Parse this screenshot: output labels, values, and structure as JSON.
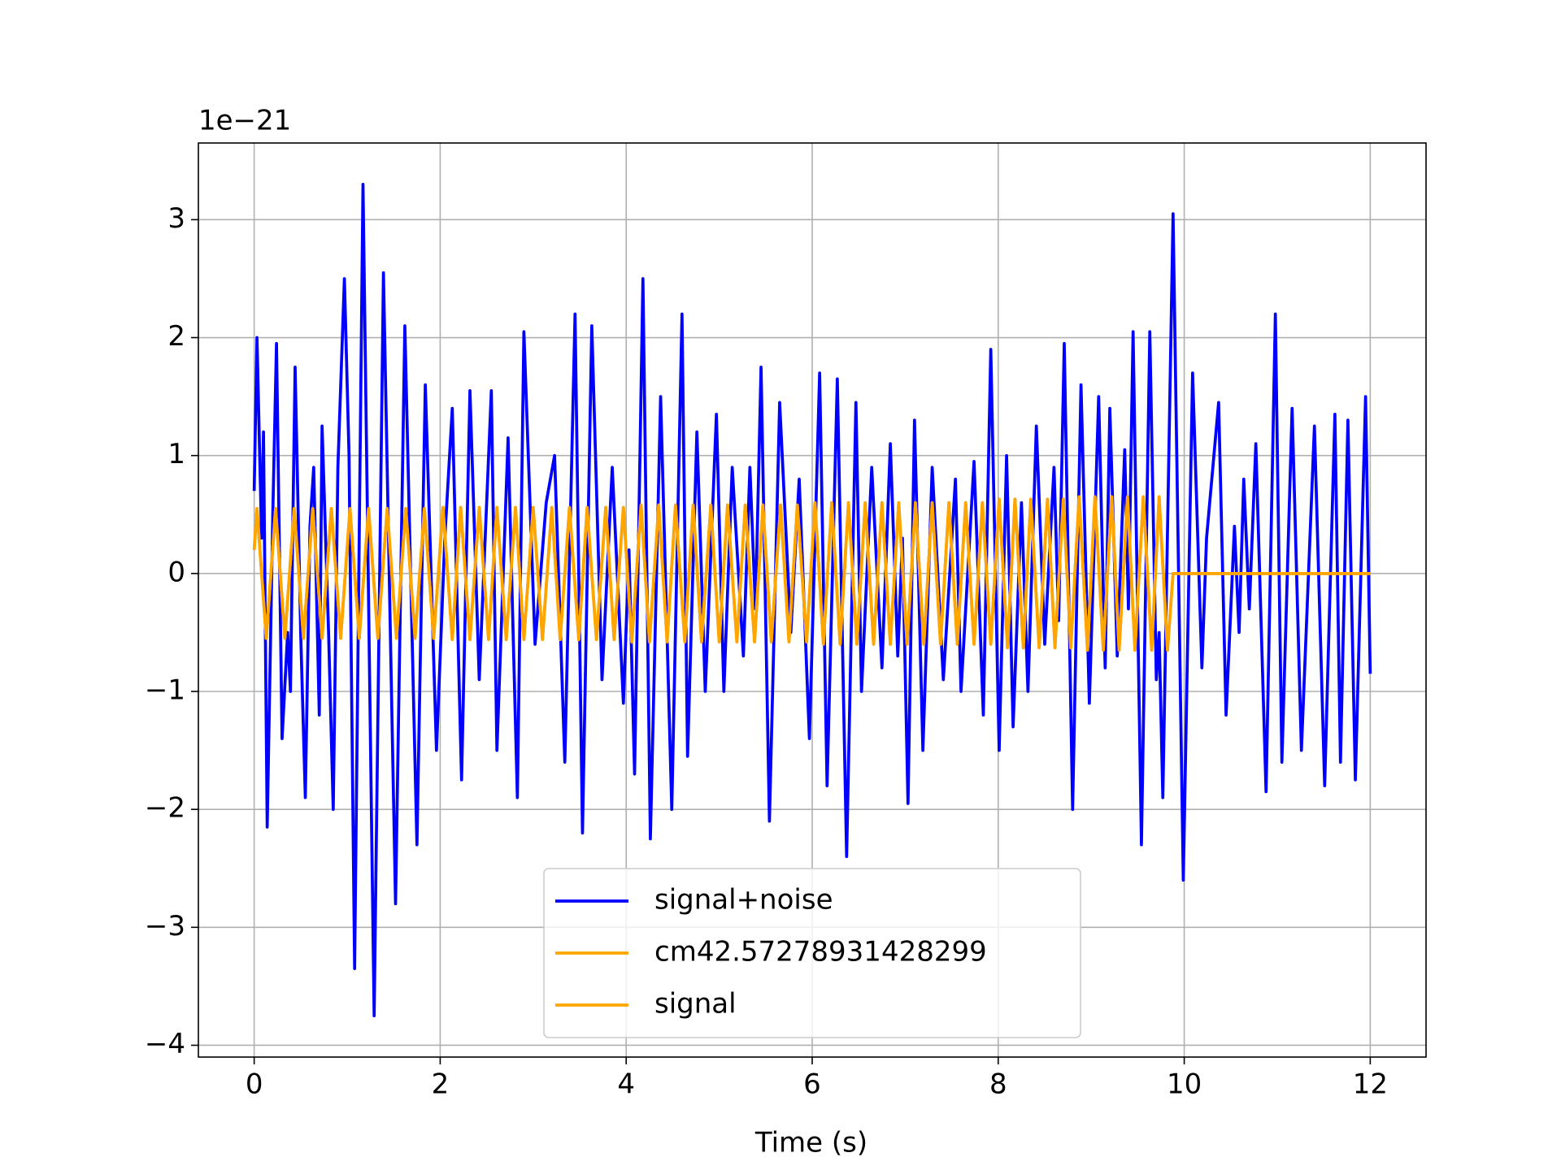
{
  "chart_data": {
    "type": "line",
    "offset_label": "1e−21",
    "xlabel": "Time (s)",
    "xlim": [
      -0.6,
      12.6
    ],
    "ylim": [
      -4.1,
      3.65
    ],
    "xticks": [
      0,
      2,
      4,
      6,
      8,
      10,
      12
    ],
    "yticks": [
      {
        "value": -4,
        "label": "−4"
      },
      {
        "value": -3,
        "label": "−3"
      },
      {
        "value": -2,
        "label": "−2"
      },
      {
        "value": -1,
        "label": "−1"
      },
      0,
      1,
      2,
      3
    ],
    "grid": true,
    "legend": "lower center",
    "series": [
      {
        "name": "signal+noise",
        "color": "#0000ff",
        "x": [
          0,
          0.03,
          0.08,
          0.1,
          0.14,
          0.2,
          0.24,
          0.3,
          0.36,
          0.39,
          0.44,
          0.5,
          0.55,
          0.6,
          0.64,
          0.7,
          0.73,
          0.8,
          0.85,
          0.9,
          0.97,
          1.02,
          1.08,
          1.17,
          1.29,
          1.39,
          1.52,
          1.62,
          1.75,
          1.84,
          1.96,
          2.05,
          2.13,
          2.23,
          2.32,
          2.42,
          2.55,
          2.61,
          2.73,
          2.83,
          2.9,
          3.02,
          3.14,
          3.23,
          3.34,
          3.45,
          3.53,
          3.63,
          3.74,
          3.85,
          3.97,
          4.03,
          4.09,
          4.18,
          4.26,
          4.37,
          4.49,
          4.6,
          4.66,
          4.76,
          4.85,
          4.97,
          5.05,
          5.14,
          5.26,
          5.33,
          5.39,
          5.45,
          5.54,
          5.65,
          5.77,
          5.86,
          5.97,
          6.08,
          6.16,
          6.27,
          6.37,
          6.47,
          6.53,
          6.64,
          6.75,
          6.84,
          6.92,
          6.97,
          7.03,
          7.1,
          7.19,
          7.29,
          7.41,
          7.54,
          7.6,
          7.74,
          7.84,
          7.92,
          8.01,
          8.09,
          8.16,
          8.25,
          8.32,
          8.41,
          8.5,
          8.6,
          8.65,
          8.71,
          8.8,
          8.89,
          8.98,
          9.08,
          9.15,
          9.2,
          9.28,
          9.36,
          9.4,
          9.45,
          9.54,
          9.63,
          9.7,
          9.73,
          9.77,
          9.88,
          9.99,
          10.09,
          10.19,
          10.24,
          10.37,
          10.45,
          10.54,
          10.59,
          10.64,
          10.7,
          10.77,
          10.88,
          10.98,
          11.05,
          11.16,
          11.26,
          11.4,
          11.51,
          11.62,
          11.68,
          11.76,
          11.84,
          11.95,
          12.0
        ],
        "values": [
          0.7,
          2.0,
          0.3,
          1.2,
          -2.15,
          0.5,
          1.95,
          -1.4,
          -0.5,
          -1.0,
          1.75,
          -0.5,
          -1.9,
          0.4,
          0.9,
          -1.2,
          1.25,
          -0.5,
          -2.0,
          0.9,
          2.5,
          1.0,
          -3.35,
          3.3,
          -3.75,
          2.55,
          -2.8,
          2.1,
          -2.3,
          1.6,
          -1.5,
          0.3,
          1.4,
          -1.75,
          1.55,
          -0.9,
          1.55,
          -1.5,
          1.15,
          -1.9,
          2.05,
          -0.6,
          0.6,
          1.0,
          -1.6,
          2.2,
          -2.2,
          2.1,
          -0.9,
          0.9,
          -1.1,
          0.2,
          -1.7,
          2.5,
          -2.25,
          1.5,
          -2.0,
          2.2,
          -1.55,
          1.2,
          -1.0,
          1.35,
          -1.0,
          0.9,
          -0.7,
          0.9,
          -0.3,
          1.75,
          -2.1,
          1.45,
          -0.5,
          0.8,
          -1.4,
          1.7,
          -1.8,
          1.65,
          -2.4,
          1.45,
          -1.0,
          0.9,
          -0.8,
          1.1,
          -0.7,
          0.3,
          -1.95,
          1.3,
          -1.5,
          0.9,
          -0.9,
          0.8,
          -1.0,
          0.95,
          -1.2,
          1.9,
          -1.5,
          1.0,
          -1.3,
          0.6,
          -1.0,
          1.25,
          -0.6,
          0.9,
          -0.4,
          1.95,
          -2.0,
          1.6,
          -1.1,
          1.5,
          -0.8,
          1.4,
          -0.7,
          1.05,
          -0.3,
          2.05,
          -2.3,
          2.05,
          -0.9,
          -0.5,
          -1.9,
          3.05,
          -2.6,
          1.7,
          -0.8,
          0.3,
          1.45,
          -1.2,
          0.4,
          -0.5,
          0.8,
          -0.3,
          1.1,
          -1.85,
          2.2,
          -1.6,
          1.4,
          -1.5,
          1.25,
          -1.8,
          1.35,
          -1.6,
          1.3,
          -1.75,
          1.5,
          -0.85
        ]
      },
      {
        "name": "cm42.57278931428299",
        "color": "#ffa500",
        "x": [
          0,
          0.03,
          0.13,
          0.23,
          0.33,
          0.43,
          0.53,
          0.63,
          0.73,
          0.83,
          0.93,
          1.03,
          1.13,
          1.23,
          1.33,
          1.43,
          1.53,
          1.63,
          1.73,
          1.83,
          1.93,
          2.03,
          2.13,
          2.22,
          2.32,
          2.42,
          2.52,
          2.61,
          2.71,
          2.81,
          2.9,
          3.0,
          3.1,
          3.2,
          3.29,
          3.39,
          3.49,
          3.58,
          3.68,
          3.78,
          3.87,
          3.97,
          4.06,
          4.16,
          4.25,
          4.35,
          4.44,
          4.53,
          4.63,
          4.72,
          4.81,
          4.91,
          5.0,
          5.09,
          5.19,
          5.28,
          5.38,
          5.47,
          5.56,
          5.66,
          5.75,
          5.84,
          5.94,
          6.03,
          6.12,
          6.21,
          6.3,
          6.39,
          6.48,
          6.57,
          6.66,
          6.75,
          6.84,
          6.93,
          7.02,
          7.11,
          7.2,
          7.29,
          7.38,
          7.47,
          7.56,
          7.65,
          7.74,
          7.83,
          7.92,
          8.01,
          8.1,
          8.18,
          8.27,
          8.35,
          8.44,
          8.53,
          8.61,
          8.7,
          8.78,
          8.87,
          8.96,
          9.04,
          9.13,
          9.22,
          9.3,
          9.39,
          9.47,
          9.56,
          9.65,
          9.73,
          9.82,
          9.88,
          12.0
        ],
        "values": [
          0.2,
          0.55,
          -0.55,
          0.55,
          -0.55,
          0.55,
          -0.55,
          0.55,
          -0.55,
          0.55,
          -0.55,
          0.55,
          -0.55,
          0.55,
          -0.55,
          0.55,
          -0.55,
          0.55,
          -0.55,
          0.55,
          -0.55,
          0.56,
          -0.56,
          0.56,
          -0.56,
          0.56,
          -0.56,
          0.56,
          -0.56,
          0.56,
          -0.56,
          0.56,
          -0.56,
          0.56,
          -0.56,
          0.56,
          -0.56,
          0.56,
          -0.56,
          0.56,
          -0.56,
          0.56,
          -0.58,
          0.58,
          -0.58,
          0.58,
          -0.58,
          0.58,
          -0.58,
          0.58,
          -0.58,
          0.58,
          -0.58,
          0.58,
          -0.58,
          0.58,
          -0.58,
          0.58,
          -0.58,
          0.58,
          -0.58,
          0.58,
          -0.58,
          0.6,
          -0.6,
          0.6,
          -0.6,
          0.6,
          -0.6,
          0.6,
          -0.6,
          0.6,
          -0.6,
          0.6,
          -0.6,
          0.6,
          -0.6,
          0.6,
          -0.6,
          0.6,
          -0.6,
          0.6,
          -0.6,
          0.6,
          -0.6,
          0.63,
          -0.63,
          0.63,
          -0.63,
          0.63,
          -0.63,
          0.63,
          -0.63,
          0.63,
          -0.63,
          0.65,
          -0.65,
          0.65,
          -0.65,
          0.65,
          -0.65,
          0.65,
          -0.65,
          0.65,
          -0.65,
          0.65,
          -0.65,
          0,
          0
        ]
      },
      {
        "name": "signal",
        "color": "#ffa500",
        "x": [
          0,
          0.03,
          0.13,
          0.23,
          0.33,
          0.43,
          0.53,
          0.63,
          0.73,
          0.83,
          0.93,
          1.03,
          1.13,
          1.23,
          1.33,
          1.43,
          1.53,
          1.63,
          1.73,
          1.83,
          1.93,
          2.03,
          2.13,
          2.22,
          2.32,
          2.42,
          2.52,
          2.61,
          2.71,
          2.81,
          2.9,
          3.0,
          3.1,
          3.2,
          3.29,
          3.39,
          3.49,
          3.58,
          3.68,
          3.78,
          3.87,
          3.97,
          4.06,
          4.16,
          4.25,
          4.35,
          4.44,
          4.53,
          4.63,
          4.72,
          4.81,
          4.91,
          5.0,
          5.09,
          5.19,
          5.28,
          5.38,
          5.47,
          5.56,
          5.66,
          5.75,
          5.84,
          5.94,
          6.03,
          6.12,
          6.21,
          6.3,
          6.39,
          6.48,
          6.57,
          6.66,
          6.75,
          6.84,
          6.93,
          7.02,
          7.11,
          7.2,
          7.29,
          7.38,
          7.47,
          7.56,
          7.65,
          7.74,
          7.83,
          7.92,
          8.01,
          8.1,
          8.18,
          8.27,
          8.35,
          8.44,
          8.53,
          8.61,
          8.7,
          8.78,
          8.87,
          8.96,
          9.04,
          9.13,
          9.22,
          9.3,
          9.39,
          9.47,
          9.56,
          9.65,
          9.73,
          9.82,
          9.88,
          12.0
        ],
        "values": [
          0.2,
          0.55,
          -0.55,
          0.55,
          -0.55,
          0.55,
          -0.55,
          0.55,
          -0.55,
          0.55,
          -0.55,
          0.55,
          -0.55,
          0.55,
          -0.55,
          0.55,
          -0.55,
          0.55,
          -0.55,
          0.55,
          -0.55,
          0.56,
          -0.56,
          0.56,
          -0.56,
          0.56,
          -0.56,
          0.56,
          -0.56,
          0.56,
          -0.56,
          0.56,
          -0.56,
          0.56,
          -0.56,
          0.56,
          -0.56,
          0.56,
          -0.56,
          0.56,
          -0.56,
          0.56,
          -0.58,
          0.58,
          -0.58,
          0.58,
          -0.58,
          0.58,
          -0.58,
          0.58,
          -0.58,
          0.58,
          -0.58,
          0.58,
          -0.58,
          0.58,
          -0.58,
          0.58,
          -0.58,
          0.58,
          -0.58,
          0.58,
          -0.58,
          0.6,
          -0.6,
          0.6,
          -0.6,
          0.6,
          -0.6,
          0.6,
          -0.6,
          0.6,
          -0.6,
          0.6,
          -0.6,
          0.6,
          -0.6,
          0.6,
          -0.6,
          0.6,
          -0.6,
          0.6,
          -0.6,
          0.6,
          -0.6,
          0.63,
          -0.63,
          0.63,
          -0.63,
          0.63,
          -0.63,
          0.63,
          -0.63,
          0.63,
          -0.63,
          0.65,
          -0.65,
          0.65,
          -0.65,
          0.65,
          -0.65,
          0.65,
          -0.65,
          0.65,
          -0.65,
          0.65,
          -0.65,
          0,
          0
        ]
      }
    ]
  }
}
